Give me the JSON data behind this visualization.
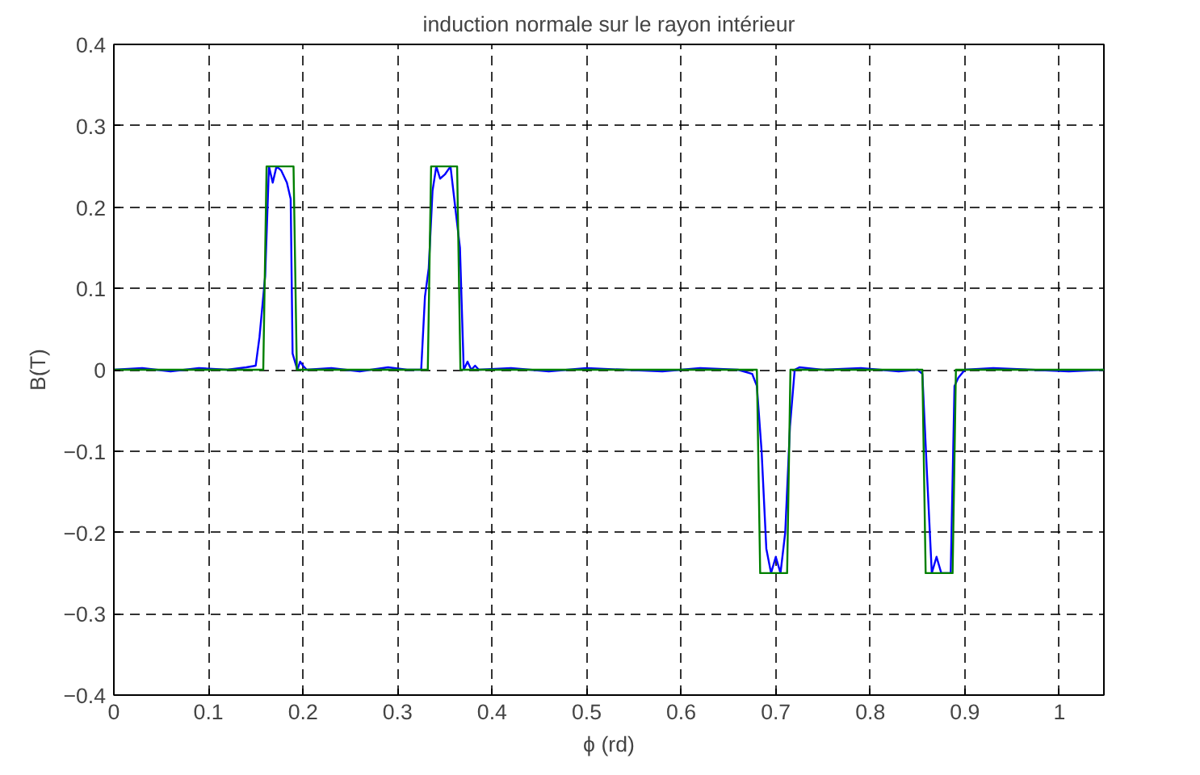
{
  "chart_data": {
    "type": "line",
    "title": "induction normale sur le rayon intérieur",
    "xlabel": "ϕ (rd)",
    "ylabel": "B(T)",
    "xlim": [
      0,
      1.047
    ],
    "ylim": [
      -0.4,
      0.4
    ],
    "xticks": [
      0,
      0.1,
      0.2,
      0.3,
      0.4,
      0.5,
      0.6,
      0.7,
      0.8,
      0.9,
      1
    ],
    "yticks": [
      -0.4,
      -0.3,
      -0.2,
      -0.1,
      0,
      0.1,
      0.2,
      0.3,
      0.4
    ],
    "grid": true,
    "line_style": "solid",
    "marker": "none",
    "series": [
      {
        "color": "#0000ff",
        "x": [
          0,
          0.03,
          0.06,
          0.09,
          0.12,
          0.14,
          0.15,
          0.154,
          0.16,
          0.164,
          0.168,
          0.172,
          0.177,
          0.183,
          0.187,
          0.189,
          0.194,
          0.197,
          0.2,
          0.204,
          0.23,
          0.26,
          0.29,
          0.31,
          0.325,
          0.329,
          0.333,
          0.337,
          0.341,
          0.345,
          0.35,
          0.356,
          0.362,
          0.366,
          0.37,
          0.374,
          0.378,
          0.382,
          0.386,
          0.42,
          0.46,
          0.5,
          0.54,
          0.58,
          0.62,
          0.66,
          0.675,
          0.68,
          0.685,
          0.69,
          0.695,
          0.7,
          0.705,
          0.71,
          0.715,
          0.72,
          0.725,
          0.75,
          0.79,
          0.83,
          0.85,
          0.855,
          0.86,
          0.865,
          0.87,
          0.875,
          0.88,
          0.885,
          0.889,
          0.893,
          0.9,
          0.93,
          0.97,
          1.01,
          1.047
        ],
        "values": [
          0,
          0.002,
          -0.002,
          0.002,
          0,
          0.003,
          0.005,
          0.04,
          0.115,
          0.25,
          0.23,
          0.25,
          0.245,
          0.23,
          0.21,
          0.02,
          0,
          0.01,
          0.005,
          0,
          0.002,
          -0.002,
          0.003,
          0,
          0,
          0.09,
          0.125,
          0.22,
          0.25,
          0.235,
          0.24,
          0.25,
          0.19,
          0.15,
          0,
          0.01,
          0,
          0.005,
          0,
          0.002,
          -0.002,
          0.002,
          0,
          -0.002,
          0.002,
          0,
          -0.005,
          -0.02,
          -0.1,
          -0.22,
          -0.25,
          -0.23,
          -0.25,
          -0.2,
          -0.07,
          0,
          0.003,
          0,
          0.002,
          -0.002,
          0,
          -0.005,
          -0.13,
          -0.25,
          -0.23,
          -0.25,
          -0.25,
          -0.25,
          -0.02,
          -0.01,
          0,
          0.002,
          0,
          -0.002,
          0
        ]
      },
      {
        "color": "#008000",
        "x": [
          0,
          0.158,
          0.1615,
          0.19,
          0.1935,
          0.332,
          0.3355,
          0.363,
          0.3665,
          0.68,
          0.6835,
          0.712,
          0.7155,
          0.855,
          0.8585,
          0.887,
          0.8905,
          1.047
        ],
        "values": [
          0,
          0,
          0.25,
          0.25,
          0,
          0,
          0.25,
          0.25,
          0,
          0,
          -0.25,
          -0.25,
          0,
          0,
          -0.25,
          -0.25,
          0,
          0
        ]
      }
    ]
  }
}
